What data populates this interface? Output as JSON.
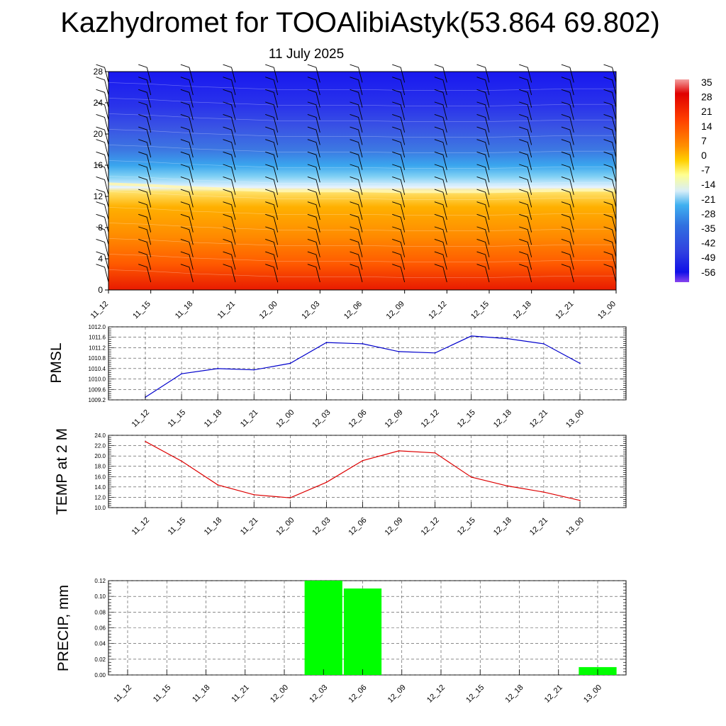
{
  "title": "Kazhydromet for TOOAlibiAstyk(53.864 69.802)",
  "subtitle": "11 July 2025",
  "time_labels": [
    "11_12",
    "11_15",
    "11_18",
    "11_21",
    "12_00",
    "12_03",
    "12_06",
    "12_09",
    "12_12",
    "12_15",
    "12_18",
    "12_21",
    "13_00"
  ],
  "chart_data": [
    {
      "type": "heatmap",
      "title": "Kazhydromet for TOOAlibiAstyk(53.864 69.802)",
      "subtitle": "11 July 2025",
      "x": [
        "11_12",
        "11_15",
        "11_18",
        "11_21",
        "12_00",
        "12_03",
        "12_06",
        "12_09",
        "12_12",
        "12_15",
        "12_18",
        "12_21",
        "13_00"
      ],
      "ylim": [
        0,
        28
      ],
      "yticks": [
        0,
        4,
        8,
        12,
        16,
        20,
        24,
        28
      ],
      "freezing_level": [
        13.6,
        13.4,
        13.1,
        12.9,
        12.7,
        12.7,
        12.7,
        12.6,
        12.6,
        12.6,
        12.7,
        12.8,
        12.8
      ],
      "colorbar": {
        "levels": [
          35,
          28,
          21,
          14,
          7,
          0,
          -7,
          -14,
          -21,
          -28,
          -35,
          -42,
          -49,
          -56
        ],
        "colors": {
          "hot": "#e00000",
          "warm": "#ff8a00",
          "mild": "#ffd000",
          "zero": "#ffff90",
          "cold": "#30a8f0",
          "colder": "#3070e0",
          "coldest": "#1010e8",
          "min": "#8844ee",
          "max": "#f4a0a0"
        }
      },
      "wind_barbs": true
    },
    {
      "type": "line",
      "ylabel": "PMSL",
      "x": [
        "11_12",
        "11_15",
        "11_18",
        "11_21",
        "12_00",
        "12_03",
        "12_06",
        "12_09",
        "12_12",
        "12_15",
        "12_18",
        "12_21",
        "13_00"
      ],
      "values": [
        1009.3,
        1010.2,
        1010.4,
        1010.35,
        1010.6,
        1011.4,
        1011.35,
        1011.05,
        1011.0,
        1011.65,
        1011.55,
        1011.35,
        1010.6
      ],
      "ylim": [
        1009.2,
        1012.0
      ],
      "yticks": [
        1009.2,
        1009.6,
        1010.0,
        1010.4,
        1010.8,
        1011.2,
        1011.6,
        1012.0
      ],
      "yticklabels": [
        "1009.2",
        "1009.6",
        "1010.0",
        "1010.4",
        "1010.8",
        "1011.2",
        "1011.6",
        "1012.0"
      ],
      "color": "#0000cc",
      "grid": true
    },
    {
      "type": "line",
      "ylabel": "TEMP at 2 M",
      "x": [
        "11_12",
        "11_15",
        "11_18",
        "11_21",
        "12_00",
        "12_03",
        "12_06",
        "12_09",
        "12_12",
        "12_15",
        "12_18",
        "12_21",
        "13_00"
      ],
      "values": [
        22.8,
        19.0,
        14.4,
        12.5,
        11.9,
        14.9,
        19.1,
        21.0,
        20.6,
        15.9,
        14.2,
        13.0,
        11.4
      ],
      "ylim": [
        10.0,
        24.0
      ],
      "yticks": [
        10,
        12,
        14,
        16,
        18,
        20,
        22,
        24
      ],
      "yticklabels": [
        "10.0",
        "12.0",
        "14.0",
        "16.0",
        "18.0",
        "20.0",
        "22.0",
        "24.0"
      ],
      "color": "#dd0000",
      "grid": true
    },
    {
      "type": "bar",
      "ylabel": "PRECIP, mm",
      "categories": [
        "11_12",
        "11_15",
        "11_18",
        "11_21",
        "12_00",
        "12_03",
        "12_06",
        "12_09",
        "12_12",
        "12_15",
        "12_18",
        "12_21",
        "13_00"
      ],
      "values": [
        0,
        0,
        0,
        0,
        0,
        0.12,
        0.11,
        0,
        0,
        0,
        0,
        0,
        0.01
      ],
      "ylim": [
        0,
        0.12
      ],
      "yticks": [
        0,
        0.02,
        0.04,
        0.06,
        0.08,
        0.1,
        0.12
      ],
      "yticklabels": [
        "0.00",
        "0.02",
        "0.04",
        "0.06",
        "0.08",
        "0.10",
        "0.12"
      ],
      "color": "#00ff00",
      "grid": true
    }
  ]
}
